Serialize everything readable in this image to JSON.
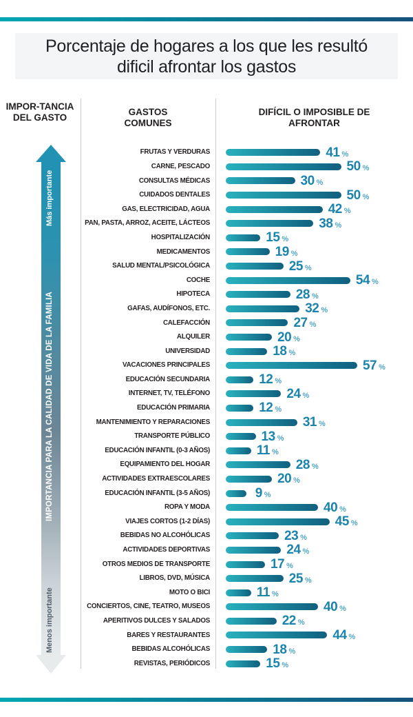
{
  "title": "Porcentaje de hogares a los que les resultó dificil afrontar los gastos",
  "columns": {
    "importance": "IMPOR-TANCIA DEL GASTO",
    "expenses": "GASTOS COMUNES",
    "difficulty": "DIFÍCIL O IMPOSIBLE DE AFRONTAR"
  },
  "importance_axis": {
    "top": "Más importante",
    "middle": "IMPORTANCIA PARA LA CALIDAD DE VIDA DE LA FAMILIA",
    "bottom": "Menos importante"
  },
  "colors": {
    "accent_left": "#00a7b2",
    "accent_right": "#16527c",
    "bar_start": "#29b1be",
    "bar_end": "#10607f",
    "value_number": "#1b84ad",
    "value_unit": "#4fa6c6",
    "arrow_teal": "#2191b4",
    "arrow_gray": "#e7ebec",
    "label_text": "#231f20",
    "divider": "#c9cccf",
    "title_band_bg": "#f3f5f6"
  },
  "chart_data": {
    "type": "bar",
    "orientation": "horizontal",
    "title": "Porcentaje de hogares a los que les resultó dificil afrontar los gastos",
    "unit": "%",
    "xlim": [
      0,
      60
    ],
    "value_axis_label": "DIFÍCIL O IMPOSIBLE DE AFRONTAR",
    "category_axis_label": "GASTOS COMUNES",
    "category_order_note": "sorted top = most important expense, bottom = least important",
    "categories": [
      "FRUTAS Y VERDURAS",
      "CARNE, PESCADO",
      "CONSULTAS MÉDICAS",
      "CUIDADOS DENTALES",
      "GAS, ELECTRICIDAD, AGUA",
      "PAN, PASTA, ARROZ, ACEITE, LÁCTEOS",
      "HOSPITALIZACIÓN",
      "MEDICAMENTOS",
      "SALUD MENTAL/PSICOLÓGICA",
      "COCHE",
      "HIPOTECA",
      "GAFAS, AUDÍFONOS, ETC.",
      "CALEFACCIÓN",
      "ALQUILER",
      "UNIVERSIDAD",
      "VACACIONES PRINCIPALES",
      "EDUCACIÓN SECUNDARIA",
      "INTERNET, TV, TELÉFONO",
      "EDUCACIÓN PRIMARIA",
      "MANTENIMIENTO Y REPARACIONES",
      "TRANSPORTE PÚBLICO",
      "EDUCACIÓN INFANTIL (0-3 AÑOS)",
      "EQUIPAMIENTO DEL HOGAR",
      "ACTIVIDADES EXTRAESCOLARES",
      "EDUCACIÓN INFANTIL (3-5 AÑOS)",
      "ROPA Y MODA",
      "VIAJES CORTOS (1-2 DÍAS)",
      "BEBIDAS NO ALCOHÓLICAS",
      "ACTIVIDADES DEPORTIVAS",
      "OTROS MEDIOS DE TRANSPORTE",
      "LIBROS, DVD, MÚSICA",
      "MOTO O BICI",
      "CONCIERTOS, CINE, TEATRO, MUSEOS",
      "APERITIVOS DULCES Y SALADOS",
      "BARES Y RESTAURANTES",
      "BEBIDAS ALCOHÓLICAS",
      "REVISTAS, PERIÓDICOS"
    ],
    "values": [
      41,
      50,
      30,
      50,
      42,
      38,
      15,
      19,
      25,
      54,
      28,
      32,
      27,
      20,
      18,
      57,
      12,
      24,
      12,
      31,
      13,
      11,
      28,
      20,
      9,
      40,
      45,
      23,
      24,
      17,
      25,
      11,
      40,
      22,
      44,
      18,
      15
    ]
  }
}
